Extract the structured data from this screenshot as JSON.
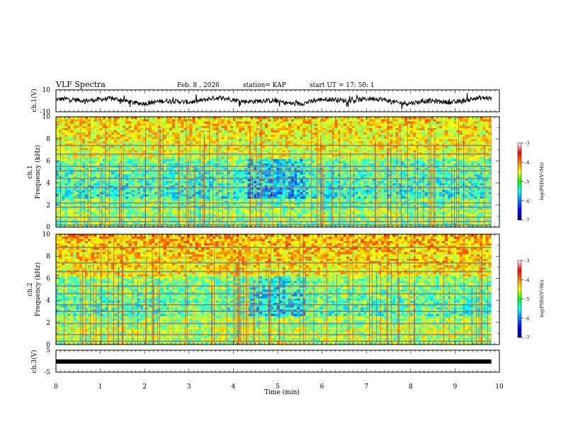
{
  "header": {
    "title": "VLF Spectra",
    "date": "Feb. 8  , 2026",
    "station": "station= KAP",
    "start": "start  UT  =   17: 50: 1"
  },
  "chart_data": {
    "type": "heatmap",
    "x_axis": {
      "label": "Time  (min)",
      "range": [
        0,
        10
      ],
      "ticks": [
        "0",
        "1",
        "2",
        "3",
        "4",
        "5",
        "6",
        "7",
        "8",
        "9",
        "10"
      ]
    },
    "panels": [
      {
        "id": "ch1-waveform",
        "type": "line",
        "ylabel": "ch.1(V)",
        "ylim": [
          -10,
          10
        ],
        "yticks": [
          "10",
          "-10"
        ]
      },
      {
        "id": "ch1-spectrogram",
        "type": "heatmap",
        "ylabel_line1": "ch.1",
        "ylabel_line2": "Frequency  (kHz)",
        "ylim": [
          0,
          10
        ],
        "yticks": [
          "0",
          "2",
          "4",
          "6",
          "8",
          "10"
        ],
        "colorbar": {
          "label": "log(PSD)(V²/Hz)",
          "range": [
            -7,
            -3
          ],
          "ticks": [
            "-3",
            "-4",
            "-5",
            "-6",
            "-7"
          ]
        },
        "horizontal_lines_khz": [
          0.2,
          0.5,
          0.9,
          1.8,
          2.2,
          3.6,
          4.4,
          5.1,
          5.5,
          6.6,
          7.4
        ],
        "data_end_min": 9.82
      },
      {
        "id": "ch2-spectrogram",
        "type": "heatmap",
        "ylabel_line1": "ch.2",
        "ylabel_line2": "Frequency  (kHz)",
        "ylim": [
          0,
          10
        ],
        "yticks": [
          "0",
          "2",
          "4",
          "6",
          "8",
          "10"
        ],
        "colorbar": {
          "label": "log(PSD)(V²/Hz)",
          "range": [
            -7,
            -3
          ],
          "ticks": [
            "-3",
            "-4",
            "-5",
            "-6",
            "-7"
          ]
        },
        "horizontal_lines_khz": [
          0.3,
          0.9,
          1.9,
          3.0,
          3.6,
          4.6,
          5.3,
          6.6,
          7.4,
          8.8
        ],
        "data_end_min": 9.82
      },
      {
        "id": "ch3-waveform",
        "type": "line",
        "ylabel": "ch.3(V)",
        "ylim": [
          -5,
          5
        ],
        "yticks": [
          "5",
          "-5"
        ],
        "constant_value_v": -0.3
      }
    ]
  }
}
